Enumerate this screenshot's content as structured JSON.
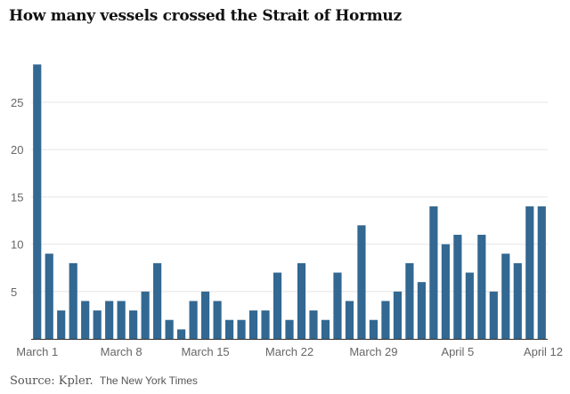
{
  "chart_data": {
    "type": "bar",
    "title": "How many vessels crossed the Strait of Hormuz",
    "xlabel": "",
    "ylabel": "",
    "ylim": [
      0,
      30
    ],
    "yticks": [
      5,
      10,
      15,
      20,
      25
    ],
    "grid": true,
    "bar_color": "#326891",
    "categories": [
      "Mar 1",
      "Mar 2",
      "Mar 3",
      "Mar 4",
      "Mar 5",
      "Mar 6",
      "Mar 7",
      "Mar 8",
      "Mar 9",
      "Mar 10",
      "Mar 11",
      "Mar 12",
      "Mar 13",
      "Mar 14",
      "Mar 15",
      "Mar 16",
      "Mar 17",
      "Mar 18",
      "Mar 19",
      "Mar 20",
      "Mar 21",
      "Mar 22",
      "Mar 23",
      "Mar 24",
      "Mar 25",
      "Mar 26",
      "Mar 27",
      "Mar 28",
      "Mar 29",
      "Mar 30",
      "Mar 31",
      "Apr 1",
      "Apr 2",
      "Apr 3",
      "Apr 4",
      "Apr 5",
      "Apr 6",
      "Apr 7",
      "Apr 8",
      "Apr 9",
      "Apr 10",
      "Apr 11",
      "Apr 12"
    ],
    "values": [
      29,
      9,
      3,
      8,
      4,
      3,
      4,
      4,
      3,
      5,
      8,
      2,
      1,
      4,
      5,
      4,
      2,
      2,
      3,
      3,
      7,
      2,
      8,
      3,
      2,
      7,
      4,
      12,
      2,
      4,
      5,
      8,
      6,
      14,
      10,
      11,
      7,
      11,
      5,
      9,
      8,
      14,
      14
    ],
    "xtick_labels": [
      {
        "index": 0,
        "label": "March 1"
      },
      {
        "index": 7,
        "label": "March 8"
      },
      {
        "index": 14,
        "label": "March 15"
      },
      {
        "index": 21,
        "label": "March 22"
      },
      {
        "index": 28,
        "label": "March 29"
      },
      {
        "index": 35,
        "label": "April 5"
      },
      {
        "index": 42,
        "label": "April 12"
      }
    ]
  },
  "footer": {
    "source": "Source: Kpler.",
    "credit": "The New York Times"
  }
}
